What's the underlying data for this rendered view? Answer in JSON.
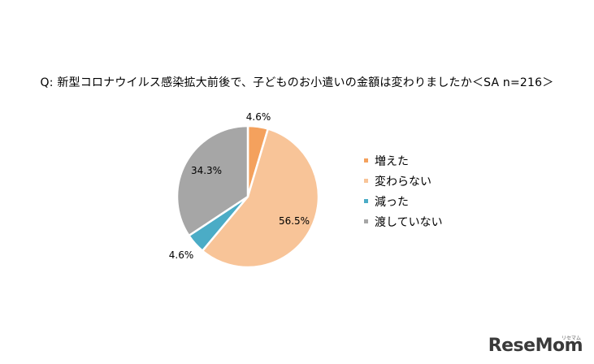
{
  "title": "Q: 新型コロナウイルス感染拡大前後で、子どものお小遣いの金額は変わりましたか＜SA n=216＞",
  "chart_data": {
    "type": "pie",
    "slices": [
      {
        "label": "増えた",
        "value": 4.6,
        "display": "4.6%",
        "color": "#f4a15d"
      },
      {
        "label": "変わらない",
        "value": 56.5,
        "display": "56.5%",
        "color": "#f8c498"
      },
      {
        "label": "減った",
        "value": 4.6,
        "display": "4.6%",
        "color": "#4bacc6"
      },
      {
        "label": "渡していない",
        "value": 34.3,
        "display": "34.3%",
        "color": "#a6a6a6"
      }
    ],
    "start_angle": "12 o'clock",
    "direction": "clockwise",
    "legend_placement": "right"
  },
  "logo": {
    "text": "ReseMom",
    "sub": "リセマム"
  }
}
